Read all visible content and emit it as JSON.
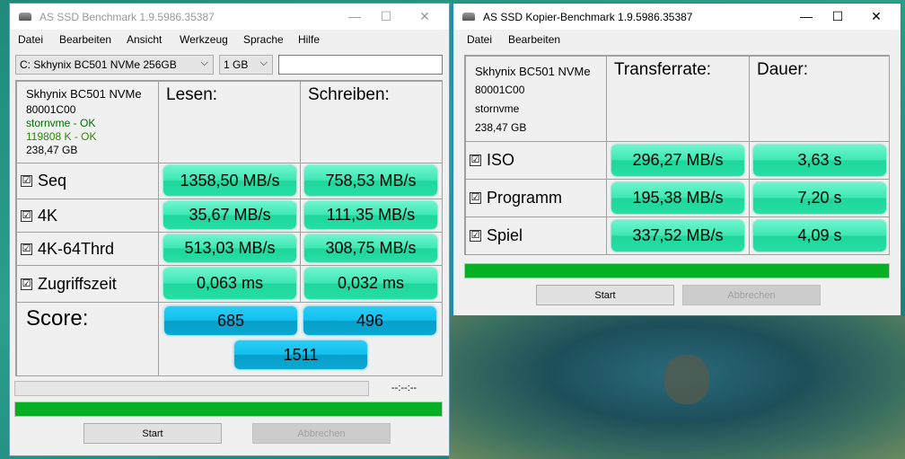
{
  "bench": {
    "title": "AS SSD Benchmark 1.9.5986.35387",
    "menu": [
      "Datei",
      "Bearbeiten",
      "Ansicht",
      "Werkzeug",
      "Sprache",
      "Hilfe"
    ],
    "drive_select": "C: Skhynix BC501 NVMe 256GB",
    "size_select": "1 GB",
    "text_field": "",
    "info": {
      "model": "Skhynix BC501 NVMe",
      "firmware": "80001C00",
      "driver": "stornvme - OK",
      "alignment": "119808 K - OK",
      "capacity": "238,47 GB"
    },
    "headers": {
      "read": "Lesen:",
      "write": "Schreiben:"
    },
    "rows": [
      {
        "label": "Seq",
        "read": "1358,50 MB/s",
        "write": "758,53 MB/s"
      },
      {
        "label": "4K",
        "read": "35,67 MB/s",
        "write": "111,35 MB/s"
      },
      {
        "label": "4K-64Thrd",
        "read": "513,03 MB/s",
        "write": "308,75 MB/s"
      },
      {
        "label": "Zugriffszeit",
        "read": "0,063 ms",
        "write": "0,032 ms"
      }
    ],
    "score_label": "Score:",
    "score": {
      "read": "685",
      "write": "496",
      "total": "1511"
    },
    "time": "--:--:--",
    "progress_percent": 100,
    "start": "Start",
    "cancel": "Abbrechen"
  },
  "copy": {
    "title": "AS SSD Kopier-Benchmark 1.9.5986.35387",
    "menu": [
      "Datei",
      "Bearbeiten"
    ],
    "info": {
      "model": "Skhynix BC501 NVMe",
      "firmware": "80001C00",
      "driver": "stornvme",
      "capacity": "238,47 GB"
    },
    "headers": {
      "rate": "Transferrate:",
      "duration": "Dauer:"
    },
    "rows": [
      {
        "label": "ISO",
        "rate": "296,27 MB/s",
        "duration": "3,63 s"
      },
      {
        "label": "Programm",
        "rate": "195,38 MB/s",
        "duration": "7,20 s"
      },
      {
        "label": "Spiel",
        "rate": "337,52 MB/s",
        "duration": "4,09 s"
      }
    ],
    "progress_percent": 100,
    "start": "Start",
    "cancel": "Abbrechen"
  },
  "checkbox_glyph": "☑",
  "window_controls": {
    "minimize": "—",
    "maximize": "☐",
    "close": "✕"
  },
  "colors": {
    "value_box": "#3ee8b5",
    "score_box": "#12c0ef",
    "progress": "#06b025"
  }
}
